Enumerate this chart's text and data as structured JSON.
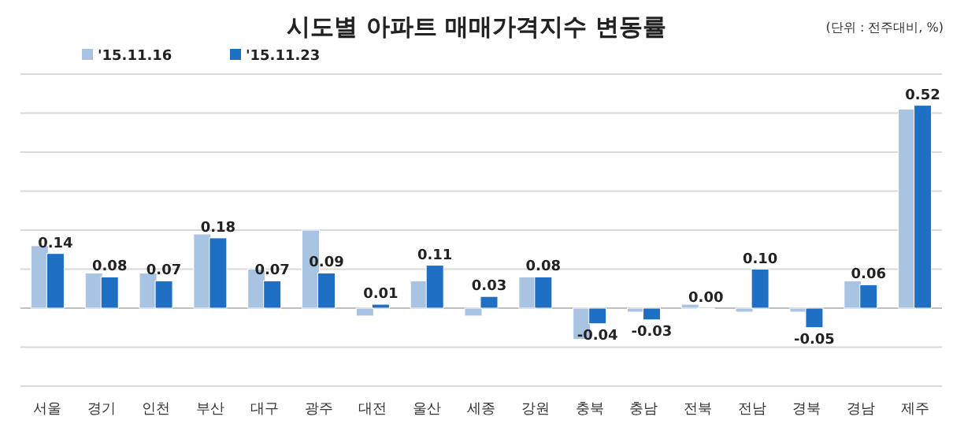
{
  "chart_data": {
    "type": "bar",
    "title": "시도별 아파트 매매가격지수 변동률",
    "annotations": [
      "(단위 : 전주대비, %)"
    ],
    "categories": [
      "서울",
      "경기",
      "인천",
      "부산",
      "대구",
      "광주",
      "대전",
      "울산",
      "세종",
      "강원",
      "충북",
      "충남",
      "전북",
      "전남",
      "경북",
      "경남",
      "제주"
    ],
    "series": [
      {
        "name": "'15.11.16",
        "color": "#a9c3e3",
        "values": [
          0.16,
          0.09,
          0.09,
          0.19,
          0.1,
          0.2,
          -0.02,
          0.07,
          -0.02,
          0.08,
          -0.08,
          -0.01,
          0.01,
          -0.01,
          -0.01,
          0.07,
          0.51
        ]
      },
      {
        "name": "'15.11.23",
        "color": "#1f6fc4",
        "values": [
          0.14,
          0.08,
          0.07,
          0.18,
          0.07,
          0.09,
          0.01,
          0.11,
          0.03,
          0.08,
          -0.04,
          -0.03,
          0.0,
          0.1,
          -0.05,
          0.06,
          0.52
        ],
        "value_labels": [
          "0.14",
          "0.08",
          "0.07",
          "0.18",
          "0.07",
          "0.09",
          "0.01",
          "0.11",
          "0.03",
          "0.08",
          "-0.04",
          "-0.03",
          "0.00",
          "0.10",
          "-0.05",
          "0.06",
          "0.52"
        ]
      }
    ],
    "ylim": [
      -0.2,
      0.6
    ],
    "yticks": [
      {
        "value": -0.2,
        "label": null
      },
      {
        "value": -0.1,
        "label": null
      },
      {
        "value": 0,
        "label": null
      },
      {
        "value": 0.1,
        "label": null
      },
      {
        "value": 0.2,
        "label": null
      },
      {
        "value": 0.3,
        "label": null
      },
      {
        "value": 0.4,
        "label": null
      },
      {
        "value": 0.5,
        "label": null
      },
      {
        "value": 0.6,
        "label": null
      }
    ],
    "tick_labels": "x",
    "grid": "y",
    "legend": "top left"
  }
}
